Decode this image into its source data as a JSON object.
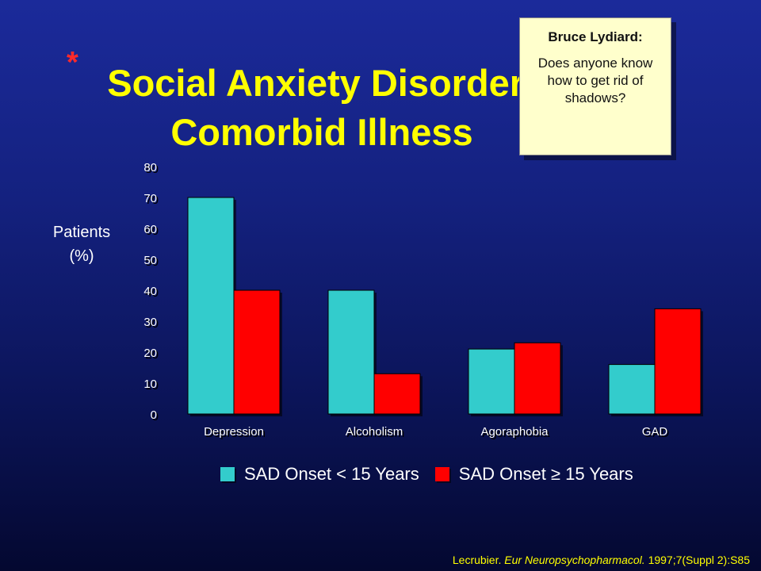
{
  "slide": {
    "asterisk": "*",
    "title_line1": "Social Anxiety Disorder:",
    "title_line2": "Comorbid Illness",
    "ylabel_line1": "Patients",
    "ylabel_line2": "(%)",
    "citation_author": "Lecrubier.",
    "citation_journal": "Eur Neuropsychopharmacol.",
    "citation_rest": "1997;7(Suppl 2):S85"
  },
  "comment": {
    "author": "Bruce Lydiard:",
    "body": "Does anyone know how to get rid of shadows?"
  },
  "chart_data": {
    "type": "bar",
    "categories": [
      "Depression",
      "Alcoholism",
      "Agoraphobia",
      "GAD"
    ],
    "series": [
      {
        "name": "SAD Onset < 15 Years",
        "values": [
          70,
          40,
          21,
          16
        ],
        "color": "#33cccc"
      },
      {
        "name": "SAD Onset ≥ 15 Years",
        "values": [
          40,
          13,
          23,
          34
        ],
        "color": "#ff0000"
      }
    ],
    "ylim": [
      0,
      80
    ],
    "yticks": [
      0,
      10,
      20,
      30,
      40,
      50,
      60,
      70,
      80
    ],
    "ylabel": "Patients (%)",
    "legend_position": "bottom"
  }
}
